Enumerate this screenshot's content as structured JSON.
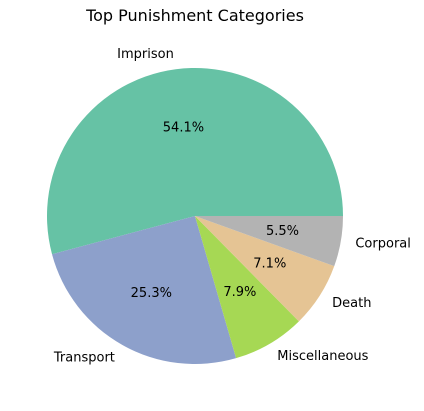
{
  "chart_data": {
    "type": "pie",
    "title": "Top Punishment Categories",
    "slices": [
      {
        "label": "Imprison",
        "value": 54.1,
        "pct_label": "54.1%",
        "color": "#66c2a5"
      },
      {
        "label": "Transport",
        "value": 25.3,
        "pct_label": "25.3%",
        "color": "#8da0cb"
      },
      {
        "label": "Miscellaneous",
        "value": 7.9,
        "pct_label": "7.9%",
        "color": "#a6d854"
      },
      {
        "label": "Death",
        "value": 7.1,
        "pct_label": "7.1%",
        "color": "#e5c494"
      },
      {
        "label": "Corporal",
        "value": 5.5,
        "pct_label": "5.5%",
        "color": "#b3b3b3"
      }
    ],
    "start_angle": "0 degrees (3 o'clock)",
    "direction": "counterclockwise",
    "legend": "none"
  }
}
